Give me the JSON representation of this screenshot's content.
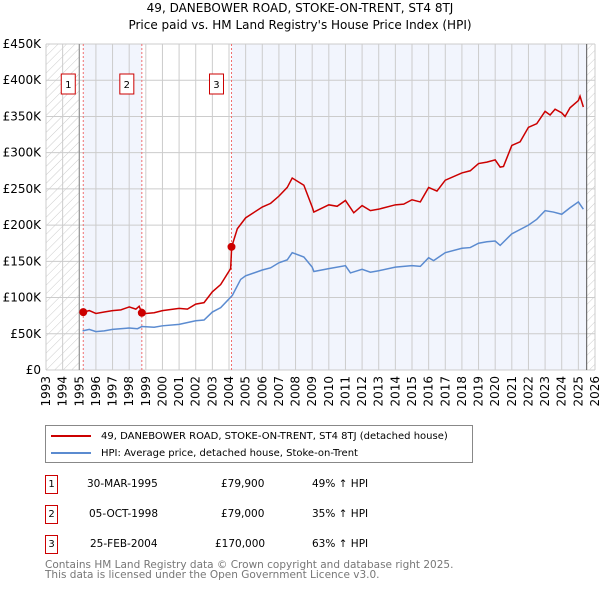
{
  "chart_data": {
    "type": "line",
    "title": "49, DANEBOWER ROAD, STOKE-ON-TRENT, ST4 8TJ",
    "subtitle": "Price paid vs. HM Land Registry's House Price Index (HPI)",
    "xlim": [
      1993,
      2026
    ],
    "ylim": [
      0,
      450000
    ],
    "x_ticks": [
      "1993",
      "1994",
      "1995",
      "1996",
      "1997",
      "1998",
      "1999",
      "2000",
      "2001",
      "2002",
      "2003",
      "2004",
      "2005",
      "2006",
      "2007",
      "2008",
      "2009",
      "2010",
      "2011",
      "2012",
      "2013",
      "2014",
      "2015",
      "2016",
      "2017",
      "2018",
      "2019",
      "2020",
      "2021",
      "2022",
      "2023",
      "2024",
      "2025",
      "2026"
    ],
    "y_ticks": [
      {
        "v": 0,
        "label": "£0"
      },
      {
        "v": 50000,
        "label": "£50K"
      },
      {
        "v": 100000,
        "label": "£100K"
      },
      {
        "v": 150000,
        "label": "£150K"
      },
      {
        "v": 200000,
        "label": "£200K"
      },
      {
        "v": 250000,
        "label": "£250K"
      },
      {
        "v": 300000,
        "label": "£300K"
      },
      {
        "v": 350000,
        "label": "£350K"
      },
      {
        "v": 400000,
        "label": "£400K"
      },
      {
        "v": 450000,
        "label": "£450K"
      }
    ],
    "grid": true,
    "series": [
      {
        "name": "49, DANEBOWER ROAD, STOKE-ON-TRENT, ST4 8TJ (detached house)",
        "color": "#cc0000",
        "x": [
          1995.25,
          1995.6,
          1996,
          1996.5,
          1997,
          1997.5,
          1998,
          1998.4,
          1998.6,
          1998.76,
          1999,
          1999.5,
          2000,
          2001,
          2001.5,
          2002,
          2002.5,
          2003,
          2003.5,
          2004.1,
          2004.16,
          2004.5,
          2005,
          2006,
          2006.5,
          2007,
          2007.5,
          2007.8,
          2008.5,
          2009,
          2009.1,
          2010,
          2010.5,
          2011,
          2011.5,
          2012,
          2012.5,
          2013,
          2014,
          2014.5,
          2015,
          2015.5,
          2016,
          2016.5,
          2017,
          2018,
          2018.5,
          2019,
          2019.5,
          2020,
          2020.3,
          2020.5,
          2021,
          2021.5,
          2022,
          2022.5,
          2023,
          2023.3,
          2023.6,
          2024,
          2024.2,
          2024.5,
          2025,
          2025.1,
          2025.3
        ],
        "y": [
          80000,
          82000,
          78000,
          80000,
          82000,
          83000,
          87000,
          84000,
          88000,
          79000,
          78000,
          79000,
          82000,
          85000,
          84000,
          91000,
          93000,
          108000,
          118000,
          140000,
          170000,
          195000,
          210000,
          225000,
          230000,
          240000,
          252000,
          265000,
          255000,
          225000,
          218000,
          228000,
          226000,
          234000,
          217000,
          227000,
          220000,
          222000,
          228000,
          229000,
          235000,
          232000,
          252000,
          247000,
          262000,
          272000,
          275000,
          285000,
          287000,
          290000,
          280000,
          281000,
          310000,
          315000,
          335000,
          340000,
          357000,
          352000,
          360000,
          355000,
          350000,
          362000,
          372000,
          378000,
          363000
        ]
      },
      {
        "name": "HPI: Average price, detached house, Stoke-on-Trent",
        "color": "#5b8bd0",
        "x": [
          1995.2,
          1995.6,
          1996,
          1996.5,
          1997,
          1998,
          1998.5,
          1998.76,
          1999.5,
          2000,
          2001,
          2002,
          2002.5,
          2003,
          2003.5,
          2004.2,
          2004.7,
          2005,
          2006,
          2006.5,
          2007,
          2007.5,
          2007.8,
          2008.5,
          2009,
          2009.1,
          2010,
          2011,
          2011.3,
          2012,
          2012.5,
          2013,
          2014,
          2015,
          2015.5,
          2016,
          2016.3,
          2017,
          2018,
          2018.5,
          2019,
          2019.5,
          2020,
          2020.3,
          2021,
          2022,
          2022.5,
          2023,
          2023.5,
          2024,
          2024.5,
          2025,
          2025.3
        ],
        "y": [
          54000,
          56000,
          53000,
          54000,
          56000,
          58000,
          57000,
          60000,
          59000,
          61000,
          63000,
          68000,
          69000,
          80000,
          86000,
          103000,
          125000,
          130000,
          138000,
          141000,
          148000,
          152000,
          162000,
          156000,
          142000,
          136000,
          140000,
          144000,
          134000,
          139000,
          135000,
          137000,
          142000,
          144000,
          143000,
          155000,
          151000,
          162000,
          168000,
          169000,
          175000,
          177000,
          178000,
          172000,
          188000,
          200000,
          208000,
          220000,
          218000,
          215000,
          224000,
          232000,
          222000
        ]
      }
    ],
    "sales": [
      {
        "label": "1",
        "x": 1995.24,
        "y": 79900
      },
      {
        "label": "2",
        "x": 1998.76,
        "y": 79000
      },
      {
        "label": "3",
        "x": 2004.15,
        "y": 170000
      }
    ],
    "hatched_before": 1995.0,
    "hatched_after": 2025.5
  },
  "legend": {
    "red": "49, DANEBOWER ROAD, STOKE-ON-TRENT, ST4 8TJ (detached house)",
    "blue": "HPI: Average price, detached house, Stoke-on-Trent"
  },
  "transactions": [
    {
      "num": "1",
      "date": "30-MAR-1995",
      "price": "£79,900",
      "hpi": "49% ↑ HPI"
    },
    {
      "num": "2",
      "date": "05-OCT-1998",
      "price": "£79,000",
      "hpi": "35% ↑ HPI"
    },
    {
      "num": "3",
      "date": "25-FEB-2004",
      "price": "£170,000",
      "hpi": "63% ↑ HPI"
    }
  ],
  "footer": {
    "line1": "Contains HM Land Registry data © Crown copyright and database right 2025.",
    "line2": "This data is licensed under the Open Government Licence v3.0."
  }
}
